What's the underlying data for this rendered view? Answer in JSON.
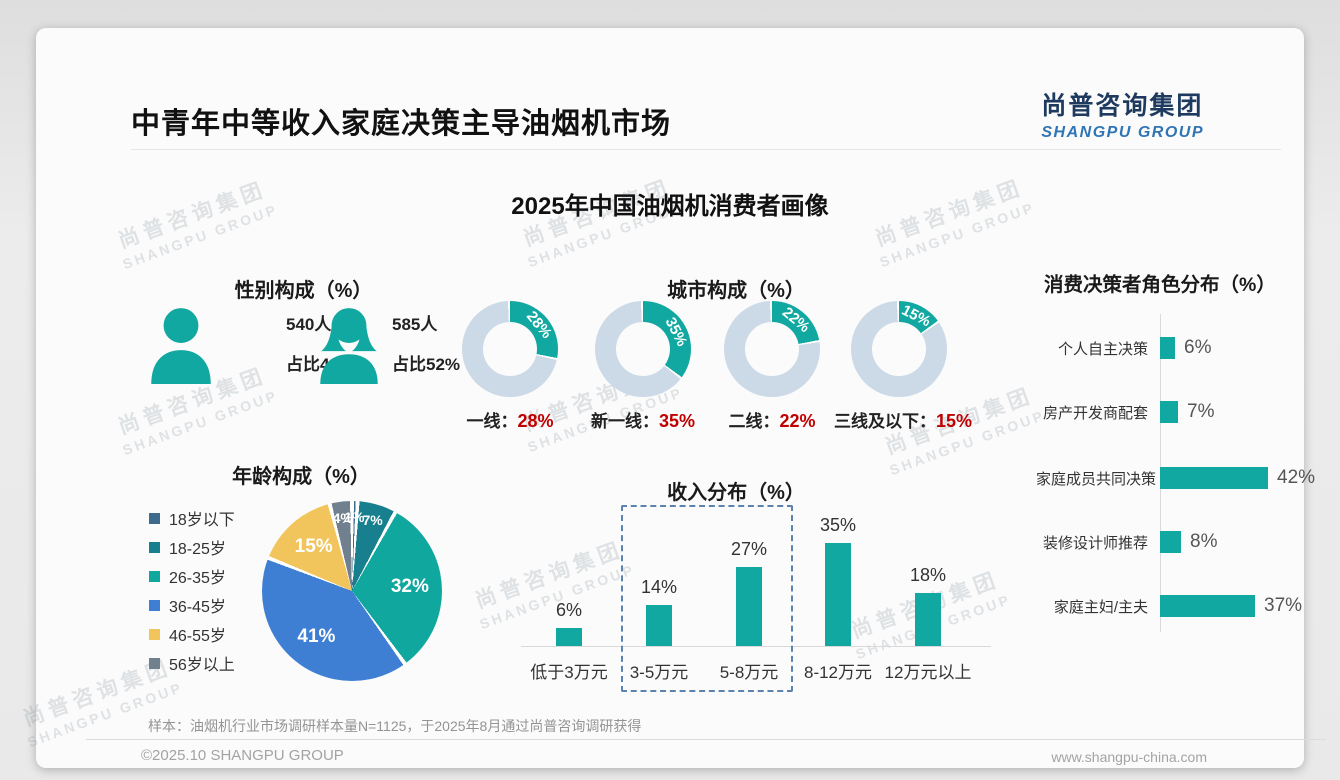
{
  "page": {
    "title": "中青年中等收入家庭决策主导油烟机市场",
    "main_title": "2025年中国油烟机消费者画像",
    "logo": {
      "cn": "尚普咨询集团",
      "en": "SHANGPU GROUP"
    },
    "watermark": {
      "line1": "尚普咨询集团",
      "line2": "SHANGPU GROUP"
    },
    "footer": {
      "sample_note": "样本：油烟机行业市场调研样本量N=1125，于2025年8月通过尚普咨询调研获得",
      "copyright": "©2025.10 SHANGPU GROUP",
      "website": "www.shangpu-china.com"
    }
  },
  "colors": {
    "accent_teal": "#10a8a0",
    "donut_rest": "#ccd9e6",
    "value_red": "#c00000",
    "dashed_box": "#5b83b0",
    "logo_navy": "#1e3a5f",
    "logo_blue": "#2f74b5"
  },
  "chart_data": [
    {
      "type": "pictogram",
      "title": "性别构成（%）",
      "items": [
        {
          "icon": "male-icon",
          "count": "540人",
          "share": "占比48%"
        },
        {
          "icon": "female-icon",
          "count": "585人",
          "share": "占比52%"
        }
      ],
      "icon_color": "#10a8a0"
    },
    {
      "type": "donut",
      "title": "城市构成（%）",
      "categories": [
        "一线",
        "新一线",
        "二线",
        "三线及以下"
      ],
      "values": [
        28,
        35,
        22,
        15
      ],
      "slice_color": "#10a8a0",
      "rest_color": "#ccd9e6",
      "value_color": "#c00000"
    },
    {
      "type": "bar-horizontal",
      "title": "消费决策者角色分布（%）",
      "categories": [
        "个人自主决策",
        "房产开发商配套",
        "家庭成员共同决策",
        "装修设计师推荐",
        "家庭主妇/主夫"
      ],
      "values": [
        6,
        7,
        42,
        8,
        37
      ],
      "bar_color": "#10a8a0",
      "xlim": [
        0,
        45
      ]
    },
    {
      "type": "pie",
      "title": "年龄构成（%）",
      "categories": [
        "18岁以下",
        "18-25岁",
        "26-35岁",
        "36-45岁",
        "46-55岁",
        "56岁以上"
      ],
      "values": [
        1,
        7,
        32,
        41,
        15,
        4
      ],
      "colors": [
        "#3e6b8c",
        "#177f8e",
        "#10a79f",
        "#3e7fd4",
        "#f2c55c",
        "#71808e"
      ]
    },
    {
      "type": "bar",
      "title": "收入分布（%）",
      "categories": [
        "低于3万元",
        "3-5万元",
        "5-8万元",
        "8-12万元",
        "12万元以上"
      ],
      "values": [
        6,
        14,
        27,
        35,
        18
      ],
      "bar_color": "#10a8a0",
      "highlight_box_categories": [
        "3-5万元",
        "5-8万元"
      ]
    }
  ]
}
